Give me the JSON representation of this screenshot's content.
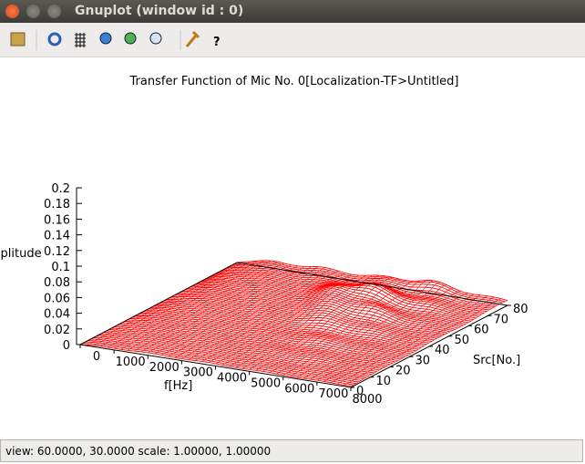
{
  "window": {
    "title": "Gnuplot (window id : 0)"
  },
  "plot": {
    "title": "Transfer Function of Mic No. 0[Localization-TF>Untitled]",
    "z_label": "Amplitude",
    "x_label": "f[Hz]",
    "y_label": "Src[No.]",
    "z_ticks": [
      0,
      0.02,
      0.04,
      0.06,
      0.08,
      0.1,
      0.12,
      0.14,
      0.16,
      0.18,
      0.2
    ],
    "x_ticks": [
      0,
      1000,
      2000,
      3000,
      4000,
      5000,
      6000,
      7000,
      8000
    ],
    "y_ticks": [
      0,
      10,
      20,
      30,
      40,
      50,
      60,
      70,
      80
    ]
  },
  "status": "view: 60.0000, 30.0000  scale: 1.00000, 1.00000"
}
